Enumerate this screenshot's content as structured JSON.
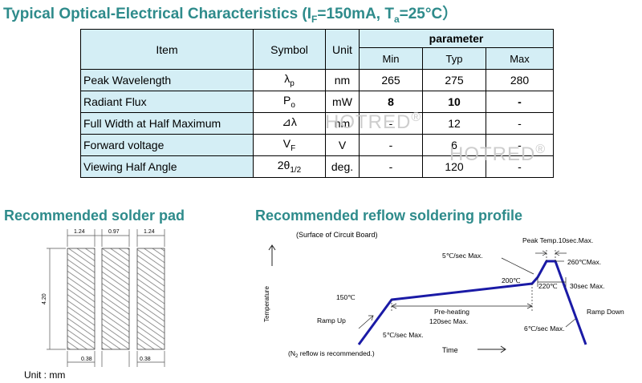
{
  "title": {
    "main": "Typical Optical-Electrical Characteristics (I",
    "if_sub": "F",
    "mid": "=150mA, T",
    "ta_sub": "a",
    "end": "=25°C）"
  },
  "table": {
    "headers": {
      "item": "Item",
      "symbol": "Symbol",
      "unit": "Unit",
      "parameter": "parameter",
      "min": "Min",
      "typ": "Typ",
      "max": "Max"
    },
    "rows": [
      {
        "item": "Peak Wavelength",
        "symbol": "λ",
        "symbol_sub": "p",
        "unit": "nm",
        "min": "265",
        "typ": "275",
        "max": "280"
      },
      {
        "item": "Radiant Flux",
        "symbol": "P",
        "symbol_sub": "o",
        "unit": "mW",
        "min": "8",
        "typ": "10",
        "max": "-"
      },
      {
        "item": "Full Width at Half Maximum",
        "symbol": "⊿λ",
        "symbol_sub": "",
        "unit": "nm",
        "min": "-",
        "typ": "12",
        "max": "-"
      },
      {
        "item": "Forward voltage",
        "symbol": "V",
        "symbol_sub": "F",
        "unit": "V",
        "min": "-",
        "typ": "6",
        "max": "-"
      },
      {
        "item": "Viewing Half Angle",
        "symbol": "2θ",
        "symbol_sub": "1/2",
        "unit": "deg.",
        "min": "-",
        "typ": "120",
        "max": "-"
      }
    ]
  },
  "watermark": {
    "text": "HOTRED",
    "mark": "®"
  },
  "solder_pad": {
    "title": "Recommended solder pad",
    "dim_pad_width": "1.24",
    "dim_gap": "0.97",
    "dim_pad_width_right": "1.24",
    "dim_height": "4.20",
    "dim_bottom_left": "0.38",
    "dim_bottom_right": "0.38",
    "unit_label": "Unit : mm"
  },
  "reflow": {
    "title": "Recommended reflow soldering profile",
    "surface": "(Surface of Circuit Board)",
    "peak_temp": "Peak Temp.10sec.Max.",
    "rate_5c_top": "5℃/sec Max.",
    "t260": "260℃Max.",
    "t200": "200℃",
    "t220": "220℃",
    "t30s": "30sec Max.",
    "t150": "150℃",
    "preheat_1": "Pre-heating",
    "preheat_2": "120sec Max.",
    "ramp_up": "Ramp Up",
    "rate_5c_bottom": "5℃/sec Max.",
    "rate_6c": "6℃/sec Max.",
    "ramp_down": "Ramp Down",
    "n2_note_pre": "(N",
    "n2_sub": "2",
    "n2_note_post": " reflow is recommended.)",
    "xlabel": "Time",
    "ylabel": "Temperature"
  },
  "colors": {
    "title": "#2e8b8b",
    "table_fill": "#d4eef5",
    "profile_line": "#1a1aa6",
    "hatch": "#7a7a7a"
  }
}
